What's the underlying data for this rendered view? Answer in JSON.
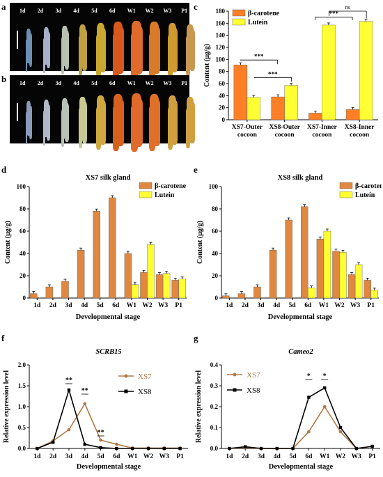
{
  "panels": {
    "a": "a",
    "b": "b",
    "c": "c",
    "d": "d",
    "e": "e",
    "f": "f",
    "g": "g"
  },
  "photos": {
    "labels": [
      "1d",
      "2d",
      "3d",
      "4d",
      "5d",
      "6d",
      "W1",
      "W2",
      "W3",
      "P1"
    ],
    "row_a_colors": [
      "#6d8fb3",
      "#a8b0c8",
      "#b8c0b0",
      "#c0a040",
      "#c8a830",
      "#d8581c",
      "#e06a2a",
      "#d87a2a",
      "#d09a30",
      "#c89850"
    ],
    "row_b_colors": [
      "#8a9ab8",
      "#b0b8c8",
      "#b8c0b8",
      "#c8c890",
      "#d0a840",
      "#d8601c",
      "#e06a2a",
      "#e07028",
      "#d0a040",
      "#d0a040"
    ]
  },
  "chart_data": [
    {
      "id": "c",
      "type": "bar",
      "title": "",
      "ylabel": "Content (μg/g)",
      "xlabel": "",
      "ylim": [
        0,
        180
      ],
      "yticks": [
        "0",
        "20",
        "40",
        "60",
        "80",
        "100",
        "120",
        "140",
        "160",
        "180"
      ],
      "categories": [
        "XS7-Outer cocoon",
        "XS8-Outer cocoon",
        "XS7-Inner cocoon",
        "XS8-Inner cocoon"
      ],
      "category_lines": [
        [
          "XS7-Outer",
          "cocoon"
        ],
        [
          "XS8-Outer",
          "cocoon"
        ],
        [
          "XS7-Inner",
          "cocoon"
        ],
        [
          "XS8-Inner",
          "cocoon"
        ]
      ],
      "series": [
        {
          "name": "β-carotene",
          "color": "#ff7f27",
          "values": [
            91,
            38,
            11,
            17
          ]
        },
        {
          "name": "Lutein",
          "color": "#ffff33",
          "values": [
            37,
            57,
            157,
            163
          ]
        }
      ],
      "legend": "top-left",
      "annotations": [
        "***",
        "***",
        "***",
        "ns"
      ]
    },
    {
      "id": "d",
      "type": "bar",
      "title": "XS7 silk gland",
      "ylabel": "Content (μg/g)",
      "xlabel": "Developmental stage",
      "ylim": [
        0,
        100
      ],
      "yticks": [
        "0",
        "20",
        "40",
        "60",
        "80",
        "100"
      ],
      "categories": [
        "1d",
        "2d",
        "3d",
        "4d",
        "5d",
        "6d",
        "W1",
        "W2",
        "W3",
        "P1"
      ],
      "series": [
        {
          "name": "β-carotene",
          "color": "#e08840",
          "values": [
            4,
            10,
            15,
            43,
            78,
            90,
            40,
            23,
            21,
            16
          ]
        },
        {
          "name": "Lutein",
          "color": "#ffff33",
          "values": [
            0,
            0,
            0,
            0,
            0,
            0,
            12,
            48,
            22,
            17
          ]
        }
      ],
      "legend": "top-right"
    },
    {
      "id": "e",
      "type": "bar",
      "title": "XS8 silk gland",
      "ylabel": "Content (μg/g)",
      "xlabel": "Developmental stage",
      "ylim": [
        0,
        100
      ],
      "yticks": [
        "0",
        "20",
        "40",
        "60",
        "80",
        "100"
      ],
      "categories": [
        "1d",
        "2d",
        "3d",
        "4d",
        "5d",
        "6d",
        "W1",
        "W2",
        "W3",
        "P1"
      ],
      "series": [
        {
          "name": "β-carotene",
          "color": "#e08840",
          "values": [
            2,
            4,
            10,
            43,
            70,
            82,
            53,
            42,
            21,
            16
          ]
        },
        {
          "name": "Lutein",
          "color": "#ffff33",
          "values": [
            0,
            0,
            0,
            0,
            0,
            9,
            60,
            41,
            30,
            7
          ]
        }
      ],
      "legend": "top-right"
    },
    {
      "id": "f",
      "type": "line",
      "title": "SCRB15",
      "ylabel": "Relative expression level",
      "xlabel": "Developmental stage",
      "ylim": [
        0,
        2.0
      ],
      "yticks": [
        "0.0",
        "0.5",
        "1.0",
        "1.5",
        "2.0"
      ],
      "categories": [
        "1d",
        "2d",
        "3d",
        "4d",
        "5d",
        "6d",
        "W1",
        "W2",
        "W3",
        "P1"
      ],
      "series": [
        {
          "name": "XS7",
          "color": "#b07a45",
          "marker": "circle",
          "values": [
            0.0,
            0.18,
            0.45,
            1.07,
            0.2,
            0.1,
            0.01,
            0.01,
            0.01,
            0.01
          ]
        },
        {
          "name": "XS8",
          "color": "#000000",
          "marker": "square",
          "values": [
            0.0,
            0.15,
            1.4,
            0.1,
            0.02,
            0.0,
            0.0,
            0.0,
            0.0,
            0.0
          ]
        }
      ],
      "annotations": [
        "**",
        "**",
        "**"
      ]
    },
    {
      "id": "g",
      "type": "line",
      "title": "Cameo2",
      "ylabel": "Relative expression level",
      "xlabel": "Developmental stage",
      "ylim": [
        0,
        0.4
      ],
      "yticks": [
        "0.0",
        "0.1",
        "0.2",
        "0.3",
        "0.4"
      ],
      "categories": [
        "1d",
        "2d",
        "3d",
        "4d",
        "5d",
        "6d",
        "W1",
        "W2",
        "W3",
        "P1"
      ],
      "series": [
        {
          "name": "XS7",
          "color": "#b07a45",
          "marker": "circle",
          "values": [
            0.0,
            0.005,
            0.0,
            0.0,
            0.0,
            0.08,
            0.2,
            0.08,
            0.0,
            0.01
          ]
        },
        {
          "name": "XS8",
          "color": "#000000",
          "marker": "square",
          "values": [
            0.0,
            0.008,
            0.0,
            0.0,
            0.0,
            0.245,
            0.29,
            0.1,
            0.0,
            0.01
          ]
        }
      ],
      "annotations": [
        "*",
        "*"
      ]
    }
  ]
}
